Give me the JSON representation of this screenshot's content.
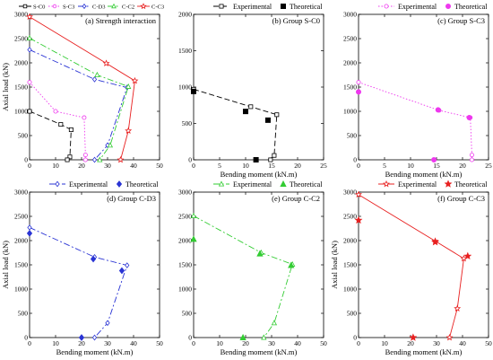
{
  "figure_title": "",
  "series_styles": {
    "S-C0": {
      "color": "#000000",
      "marker": "square",
      "dash": "6,3"
    },
    "S-C3": {
      "color": "#ee38ee",
      "marker": "circle",
      "dash": "1.5,2"
    },
    "C-D3": {
      "color": "#2a34d4",
      "marker": "diamond",
      "dash": "7,2.5,2,2.5"
    },
    "C-C2": {
      "color": "#33cc33",
      "marker": "triangle",
      "dash": "7,2.5,2,2.5"
    },
    "C-C3": {
      "color": "#e82020",
      "marker": "star",
      "dash": ""
    }
  },
  "chart_data": [
    {
      "type": "line",
      "title": "(a) Strength interaction",
      "xlabel": "",
      "ylabel": "Axial load (kN)",
      "xlim": [
        0,
        50
      ],
      "ylim": [
        0,
        3000
      ],
      "xticks": [
        0,
        10,
        20,
        30,
        40,
        50
      ],
      "yticks": [
        0,
        500,
        1000,
        1500,
        2000,
        2500,
        3000
      ],
      "legend": {
        "position": "top-outside",
        "entries": [
          "S-C0",
          "S-C3",
          "C-D3",
          "C-C2",
          "C-C3"
        ]
      },
      "series": [
        {
          "name": "S-C0",
          "style": "S-C0",
          "x": [
            0,
            12,
            16,
            15.5,
            14.5
          ],
          "y": [
            1000,
            730,
            620,
            60,
            0
          ]
        },
        {
          "name": "S-C3",
          "style": "S-C3",
          "x": [
            0,
            10,
            21,
            21.5,
            21.5
          ],
          "y": [
            1600,
            1000,
            870,
            100,
            0
          ]
        },
        {
          "name": "C-D3",
          "style": "C-D3",
          "x": [
            0,
            25,
            37.5,
            30,
            25
          ],
          "y": [
            2270,
            1660,
            1490,
            300,
            0
          ]
        },
        {
          "name": "C-C2",
          "style": "C-C2",
          "x": [
            0,
            26,
            38,
            31,
            27
          ],
          "y": [
            2510,
            1750,
            1510,
            300,
            0
          ]
        },
        {
          "name": "C-C3",
          "style": "C-C3",
          "x": [
            0,
            29.5,
            40.5,
            38,
            35
          ],
          "y": [
            2950,
            1990,
            1630,
            600,
            0
          ]
        }
      ],
      "points": []
    },
    {
      "type": "line",
      "title": "(b) Group S-C0",
      "xlabel": "Bending moment (kN.m)",
      "ylabel": "",
      "xlim": [
        0,
        25
      ],
      "ylim": [
        0,
        2000
      ],
      "xticks": [
        0,
        5,
        10,
        15,
        20,
        25
      ],
      "yticks": [
        0,
        500,
        1000,
        1500,
        2000
      ],
      "legend": {
        "position": "top-outside",
        "entries": [
          "Experimental",
          "Theoretical"
        ]
      },
      "series": [
        {
          "name": "Experimental",
          "style": "S-C0",
          "x": [
            0,
            11,
            16,
            15.5,
            14.8
          ],
          "y": [
            970,
            730,
            620,
            60,
            0
          ]
        }
      ],
      "points": [
        {
          "style": "S-C0",
          "x": [
            0,
            10,
            14.3,
            12
          ],
          "y": [
            940,
            665,
            545,
            0
          ]
        }
      ]
    },
    {
      "type": "line",
      "title": "(c) Group S-C3",
      "xlabel": "Bending moment (kN.m)",
      "ylabel": "",
      "xlim": [
        0,
        25
      ],
      "ylim": [
        0,
        3000
      ],
      "xticks": [
        0,
        5,
        10,
        15,
        20,
        25
      ],
      "yticks": [
        0,
        500,
        1000,
        1500,
        2000,
        2500,
        3000
      ],
      "legend": {
        "position": "top-outside",
        "entries": [
          "Experimental",
          "Theoretical"
        ]
      },
      "series": [
        {
          "name": "Experimental",
          "style": "S-C3",
          "x": [
            0,
            15.5,
            21.5,
            21.8,
            21.8
          ],
          "y": [
            1600,
            1020,
            870,
            100,
            0
          ]
        }
      ],
      "points": [
        {
          "style": "S-C3",
          "x": [
            0,
            15.3,
            21.3,
            14.5
          ],
          "y": [
            1400,
            1030,
            870,
            0
          ]
        }
      ]
    },
    {
      "type": "line",
      "title": "(d) Group C-D3",
      "xlabel": "Bending moment (kN.m)",
      "ylabel": "Axial load (kN)",
      "xlim": [
        0,
        50
      ],
      "ylim": [
        0,
        3000
      ],
      "xticks": [
        0,
        10,
        20,
        30,
        40,
        50
      ],
      "yticks": [
        0,
        500,
        1000,
        1500,
        2000,
        2500,
        3000
      ],
      "legend": {
        "position": "top-outside",
        "entries": [
          "Experimental",
          "Theoretical"
        ]
      },
      "series": [
        {
          "name": "Experimental",
          "style": "C-D3",
          "x": [
            0,
            25,
            37.5,
            30,
            25
          ],
          "y": [
            2270,
            1660,
            1490,
            300,
            0
          ]
        }
      ],
      "points": [
        {
          "style": "C-D3",
          "x": [
            0,
            24.5,
            35.5,
            20
          ],
          "y": [
            2150,
            1620,
            1380,
            0
          ]
        }
      ]
    },
    {
      "type": "line",
      "title": "(e) Group C-C2",
      "xlabel": "Bending moment (kN.m)",
      "ylabel": "",
      "xlim": [
        0,
        50
      ],
      "ylim": [
        0,
        3000
      ],
      "xticks": [
        0,
        10,
        20,
        30,
        40,
        50
      ],
      "yticks": [
        0,
        500,
        1000,
        1500,
        2000,
        2500,
        3000
      ],
      "legend": {
        "position": "top-outside",
        "entries": [
          "Experimental",
          "Theoretical"
        ]
      },
      "series": [
        {
          "name": "Experimental",
          "style": "C-C2",
          "x": [
            0,
            26,
            38,
            31,
            27
          ],
          "y": [
            2510,
            1750,
            1510,
            300,
            0
          ]
        }
      ],
      "points": [
        {
          "style": "C-C2",
          "x": [
            0,
            25.5,
            37.5,
            19
          ],
          "y": [
            2030,
            1730,
            1490,
            0
          ]
        }
      ]
    },
    {
      "type": "line",
      "title": "(f) Group C-C3",
      "xlabel": "Bending moment (kN.m)",
      "ylabel": "Axial load (kN)",
      "xlim": [
        0,
        50
      ],
      "ylim": [
        0,
        3000
      ],
      "xticks": [
        0,
        10,
        20,
        30,
        40,
        50
      ],
      "yticks": [
        0,
        500,
        1000,
        1500,
        2000,
        2500,
        3000
      ],
      "legend": {
        "position": "top-outside",
        "entries": [
          "Experimental",
          "Theoretical"
        ]
      },
      "series": [
        {
          "name": "Experimental",
          "style": "C-C3",
          "x": [
            0,
            29.5,
            40.5,
            38,
            35
          ],
          "y": [
            2950,
            1990,
            1630,
            600,
            0
          ]
        }
      ],
      "points": [
        {
          "style": "C-C3",
          "x": [
            0,
            29.5,
            42,
            21
          ],
          "y": [
            2420,
            1970,
            1680,
            0
          ]
        }
      ]
    }
  ]
}
